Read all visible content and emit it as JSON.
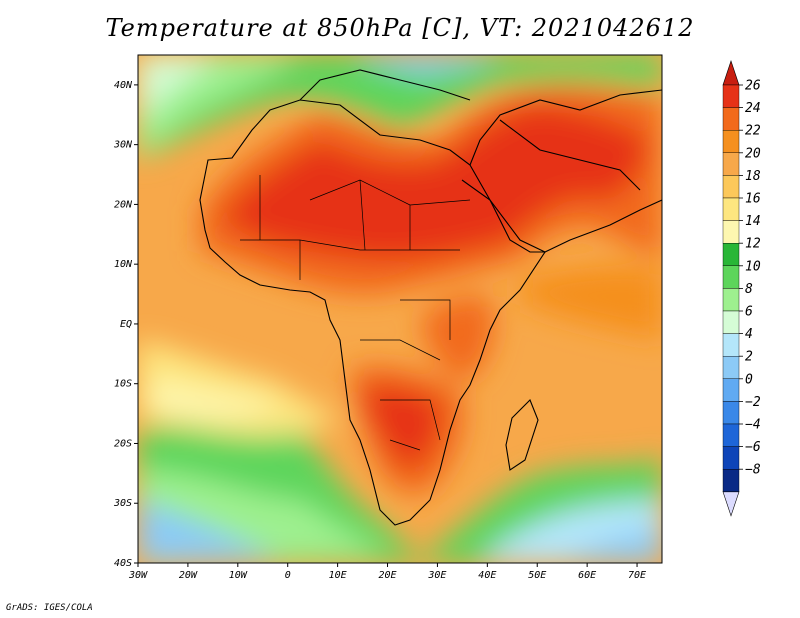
{
  "title": "Temperature at 850hPa [C], VT: 2021042612",
  "credit": "GrADS: IGES/COLA",
  "map": {
    "projection": "lat-lon",
    "lon_range": [
      -30,
      75
    ],
    "lat_range": [
      -40,
      45
    ],
    "lon_ticks": [
      {
        "value": -30,
        "label": "30W"
      },
      {
        "value": -20,
        "label": "20W"
      },
      {
        "value": -10,
        "label": "10W"
      },
      {
        "value": 0,
        "label": "0"
      },
      {
        "value": 10,
        "label": "10E"
      },
      {
        "value": 20,
        "label": "20E"
      },
      {
        "value": 30,
        "label": "30E"
      },
      {
        "value": 40,
        "label": "40E"
      },
      {
        "value": 50,
        "label": "50E"
      },
      {
        "value": 60,
        "label": "60E"
      },
      {
        "value": 70,
        "label": "70E"
      }
    ],
    "lat_ticks": [
      {
        "value": 40,
        "label": "40N"
      },
      {
        "value": 30,
        "label": "30N"
      },
      {
        "value": 20,
        "label": "20N"
      },
      {
        "value": 10,
        "label": "10N"
      },
      {
        "value": 0,
        "label": "EQ"
      },
      {
        "value": -10,
        "label": "10S"
      },
      {
        "value": -20,
        "label": "20S"
      },
      {
        "value": -30,
        "label": "30S"
      },
      {
        "value": -40,
        "label": "40S"
      }
    ]
  },
  "colorbar": {
    "levels": [
      {
        "label": "26",
        "color": "#e63217"
      },
      {
        "label": "24",
        "color": "#f26a1b"
      },
      {
        "label": "22",
        "color": "#f5901f"
      },
      {
        "label": "20",
        "color": "#f7a84a"
      },
      {
        "label": "18",
        "color": "#fcc85a"
      },
      {
        "label": "16",
        "color": "#fde680"
      },
      {
        "label": "14",
        "color": "#fdf7b0"
      },
      {
        "label": "12",
        "color": "#29b637"
      },
      {
        "label": "10",
        "color": "#5dd55b"
      },
      {
        "label": "8",
        "color": "#9ef08f"
      },
      {
        "label": "6",
        "color": "#d5fcd6"
      },
      {
        "label": "4",
        "color": "#b4e6fa"
      },
      {
        "label": "2",
        "color": "#8ccaf6"
      },
      {
        "label": "0",
        "color": "#60aaf2"
      },
      {
        "label": "−2",
        "color": "#3a88e8"
      },
      {
        "label": "−4",
        "color": "#1e66d8"
      },
      {
        "label": "−6",
        "color": "#0e45b8"
      },
      {
        "label": "−8",
        "color": "#0a2a86"
      }
    ],
    "top_color": "#c81e10",
    "bottom_color": "#dcdcff"
  }
}
